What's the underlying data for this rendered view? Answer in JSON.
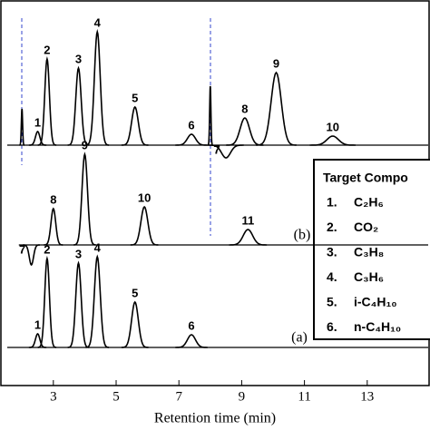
{
  "chart_data": {
    "type": "chromatogram",
    "x_label": "Retention time (min)",
    "xlim": [
      1.3,
      15
    ],
    "xticks": [
      3,
      5,
      7,
      9,
      11,
      13
    ],
    "series": [
      {
        "color": "#000000",
        "times": [
          2.0,
          2.5,
          2.8,
          3.8,
          4.4,
          5.6,
          7.4,
          8.0,
          8.5,
          9.1,
          10.1,
          11.9
        ],
        "values": [
          40,
          15,
          95,
          85,
          125,
          42,
          12,
          65,
          -14,
          30,
          80,
          10
        ],
        "labels": [
          null,
          "1",
          "2",
          "3",
          "4",
          "5",
          "6",
          null,
          "7",
          "8",
          "9",
          "10"
        ]
      },
      {
        "name": "(b)",
        "color": "#000000",
        "times": [
          2.3,
          3.0,
          4.0,
          5.9,
          9.2
        ],
        "values": [
          -22,
          40,
          100,
          42,
          17
        ],
        "labels": [
          "7",
          "8",
          "9",
          "10",
          "11"
        ]
      },
      {
        "name": "(a)",
        "color": "#000000",
        "times": [
          2.5,
          2.8,
          3.8,
          4.4,
          5.6,
          7.4
        ],
        "values": [
          15,
          98,
          93,
          100,
          50,
          14
        ],
        "labels": [
          "1",
          "2",
          "3",
          "4",
          "5",
          "6"
        ]
      }
    ],
    "legend": {
      "title": "Target Compo",
      "items": [
        [
          "1.",
          "C₂H₆"
        ],
        [
          "2.",
          "CO₂"
        ],
        [
          "3.",
          "C₃H₈"
        ],
        [
          "4.",
          "C₃H₆"
        ],
        [
          "5.",
          "i-C₄H₁₀"
        ],
        [
          "6.",
          "n-C₄H₁₀"
        ]
      ]
    }
  }
}
